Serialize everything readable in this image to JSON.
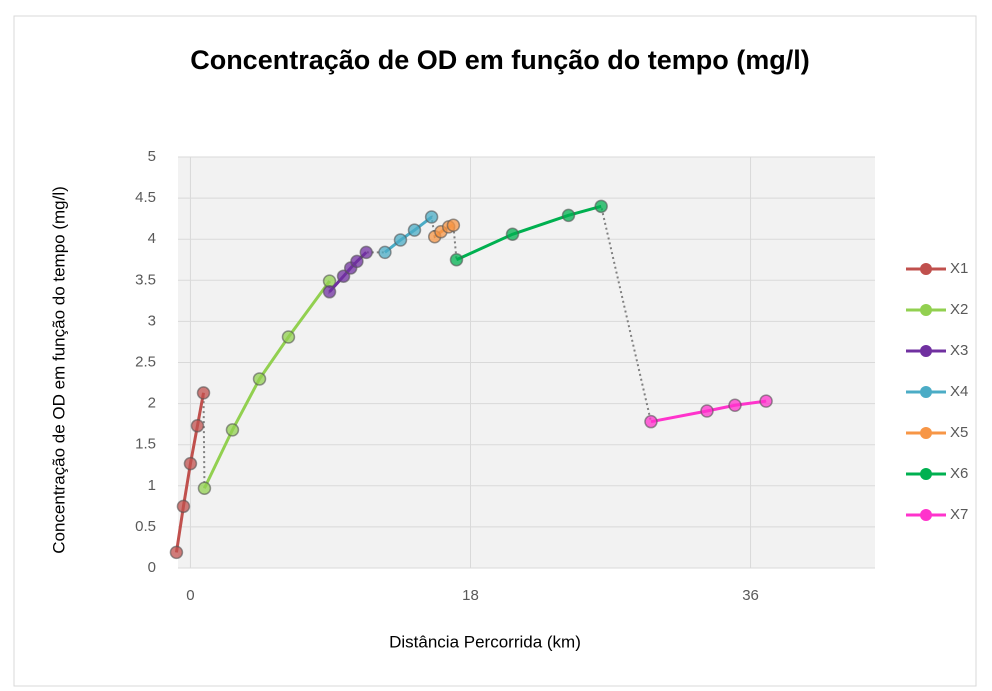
{
  "chart_data": {
    "type": "scatter",
    "title": "Concentração de OD em função do tempo (mg/l)",
    "x_label": "Distância Percorrida (km)",
    "y_label": "Concentração de OD em função do tempo (mg/l)",
    "xlim": [
      -0.8,
      44
    ],
    "xticks": [
      0,
      18,
      36
    ],
    "ylim": [
      0,
      5
    ],
    "yticks": [
      0,
      0.5,
      1,
      1.5,
      2,
      2.5,
      3,
      3.5,
      4,
      4.5,
      5
    ],
    "grid": true,
    "legend": "right",
    "series": [
      {
        "name": "X1",
        "color": "#c0504d",
        "x": [
          -0.9,
          -0.45,
          0,
          0.45,
          0.84
        ],
        "values": [
          0.19,
          0.75,
          1.27,
          1.73,
          2.13
        ]
      },
      {
        "name": "X2",
        "color": "#92d050",
        "x": [
          0.9,
          2.7,
          4.44,
          6.3,
          8.94
        ],
        "values": [
          0.97,
          1.68,
          2.3,
          2.81,
          3.49
        ]
      },
      {
        "name": "X3",
        "color": "#7030a0",
        "x": [
          8.94,
          9.84,
          10.3,
          10.7,
          11.3
        ],
        "values": [
          3.36,
          3.55,
          3.65,
          3.73,
          3.84
        ]
      },
      {
        "name": "X4",
        "color": "#4bacc6",
        "x": [
          12.5,
          13.5,
          14.4,
          15.5
        ],
        "values": [
          3.84,
          3.99,
          4.11,
          4.27
        ]
      },
      {
        "name": "X5",
        "color": "#f79646",
        "x": [
          15.7,
          16.1,
          16.6,
          16.9
        ],
        "values": [
          4.03,
          4.09,
          4.15,
          4.17
        ]
      },
      {
        "name": "X6",
        "color": "#00b050",
        "x": [
          17.1,
          20.7,
          24.3,
          26.4
        ],
        "values": [
          3.75,
          4.06,
          4.29,
          4.4
        ]
      },
      {
        "name": "X7",
        "color": "#ff33cc",
        "x": [
          29.6,
          33.2,
          35.0,
          37.0
        ],
        "values": [
          1.78,
          1.91,
          1.98,
          2.03
        ]
      }
    ]
  }
}
